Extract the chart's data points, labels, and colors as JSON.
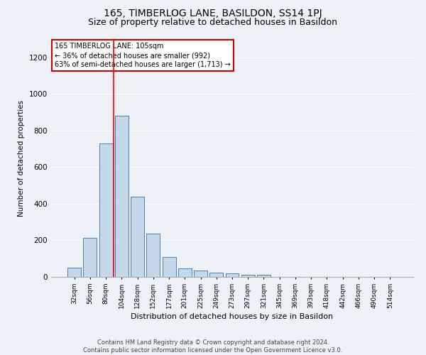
{
  "title": "165, TIMBERLOG LANE, BASILDON, SS14 1PJ",
  "subtitle": "Size of property relative to detached houses in Basildon",
  "xlabel": "Distribution of detached houses by size in Basildon",
  "ylabel": "Number of detached properties",
  "categories": [
    "32sqm",
    "56sqm",
    "80sqm",
    "104sqm",
    "128sqm",
    "152sqm",
    "177sqm",
    "201sqm",
    "225sqm",
    "249sqm",
    "273sqm",
    "297sqm",
    "321sqm",
    "345sqm",
    "369sqm",
    "393sqm",
    "418sqm",
    "442sqm",
    "466sqm",
    "490sqm",
    "514sqm"
  ],
  "values": [
    50,
    215,
    730,
    880,
    440,
    235,
    110,
    47,
    35,
    25,
    20,
    10,
    10,
    0,
    0,
    0,
    0,
    0,
    0,
    0,
    0
  ],
  "bar_color": "#c5d8ea",
  "bar_edge_color": "#4a7fb5",
  "annotation_box_text": "165 TIMBERLOG LANE: 105sqm\n← 36% of detached houses are smaller (992)\n63% of semi-detached houses are larger (1,713) →",
  "annotation_box_color": "#cc0000",
  "red_line_bar_index": 3,
  "ylim": [
    0,
    1300
  ],
  "yticks": [
    0,
    200,
    400,
    600,
    800,
    1000,
    1200
  ],
  "footer_line1": "Contains HM Land Registry data © Crown copyright and database right 2024.",
  "footer_line2": "Contains public sector information licensed under the Open Government Licence v3.0.",
  "background_color": "#eef2f7",
  "plot_bg_color": "#eef2f7",
  "title_fontsize": 10,
  "subtitle_fontsize": 9
}
